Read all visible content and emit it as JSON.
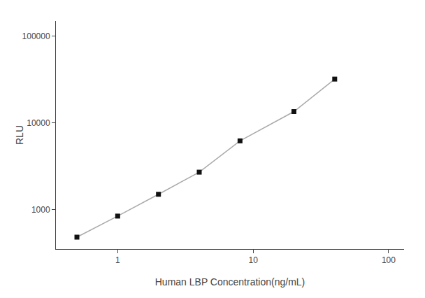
{
  "chart_data": {
    "type": "line",
    "x": [
      0.5,
      1.0,
      2.0,
      4.0,
      8.0,
      20.0,
      40.0
    ],
    "series": [
      {
        "values": [
          480,
          840,
          1500,
          2700,
          6200,
          13500,
          32000
        ],
        "color": "#aaaaaa",
        "marker": "square",
        "colors": [
          "#111111",
          "#111111",
          "#111111",
          "#111111",
          "#111111",
          "#111111",
          "#111111"
        ]
      }
    ],
    "xlabel": "Human LBP Concentration(ng/mL)",
    "ylabel": "RLU",
    "log": true,
    "xlim": [
      0.35,
      130
    ],
    "ylim": [
      350,
      150000
    ],
    "xticks": [
      1,
      10,
      100
    ],
    "yticks": [
      1000,
      10000,
      100000
    ],
    "grid": false
  }
}
